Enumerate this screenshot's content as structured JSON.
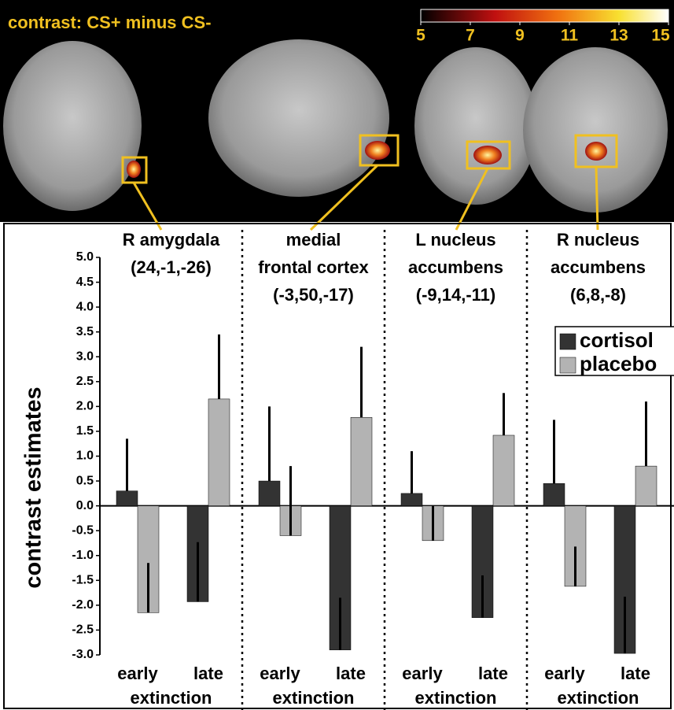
{
  "colorbar": {
    "label": "contrast: CS+ minus CS-",
    "lim": [
      5,
      15
    ],
    "ticks": [
      5,
      7,
      9,
      11,
      13,
      15
    ]
  },
  "chart_data": {
    "type": "bar",
    "ylabel": "contrast estimates",
    "ylim": [
      -3,
      5
    ],
    "yticks": [
      {
        "value": 5,
        "label": "5.0"
      },
      {
        "value": 4.5,
        "label": "4.5"
      },
      {
        "value": 4,
        "label": "4.0"
      },
      {
        "value": 3.5,
        "label": "3.5"
      },
      {
        "value": 3,
        "label": "3.0"
      },
      {
        "value": 2.5,
        "label": "2.5"
      },
      {
        "value": 2,
        "label": "2.0"
      },
      {
        "value": 1.5,
        "label": "1.5"
      },
      {
        "value": 1,
        "label": "1.0"
      },
      {
        "value": 0.5,
        "label": "0.5"
      },
      {
        "value": 0,
        "label": "0.0"
      },
      {
        "value": -0.5,
        "label": "-0.5"
      },
      {
        "value": -1,
        "label": "-1.0"
      },
      {
        "value": -1.5,
        "label": "-1.5"
      },
      {
        "value": -2,
        "label": "-2.0"
      },
      {
        "value": -2.5,
        "label": "-2.5"
      },
      {
        "value": -3,
        "label": "-3.0"
      }
    ],
    "panels": [
      {
        "title": [
          "R amygdala",
          "(24,-1,-26)"
        ],
        "xlabel": "extinction"
      },
      {
        "title": [
          "medial",
          "frontal cortex",
          "(-3,50,-17)"
        ],
        "xlabel": "extinction"
      },
      {
        "title": [
          "L nucleus",
          "accumbens",
          "(-9,14,-11)"
        ],
        "xlabel": "extinction"
      },
      {
        "title": [
          "R nucleus",
          "accumbens",
          "(6,8,-8)"
        ],
        "xlabel": "extinction"
      }
    ],
    "categories": [
      "early",
      "late",
      "early",
      "late",
      "early",
      "late",
      "early",
      "late"
    ],
    "series": [
      {
        "name": "cortisol",
        "color": "#333333",
        "values": [
          0.3,
          -1.93,
          0.5,
          -2.9,
          0.25,
          -2.25,
          0.45,
          -2.97
        ],
        "errors": [
          1.05,
          1.2,
          1.5,
          1.05,
          0.85,
          0.85,
          1.28,
          1.14
        ]
      },
      {
        "name": "placebo",
        "color": "#b3b3b3",
        "values": [
          -2.15,
          2.15,
          -0.6,
          1.78,
          -0.7,
          1.42,
          -1.62,
          0.8
        ],
        "errors": [
          1.0,
          1.3,
          1.4,
          1.42,
          0.7,
          0.85,
          0.8,
          1.3
        ]
      }
    ],
    "legend": "upper right"
  }
}
